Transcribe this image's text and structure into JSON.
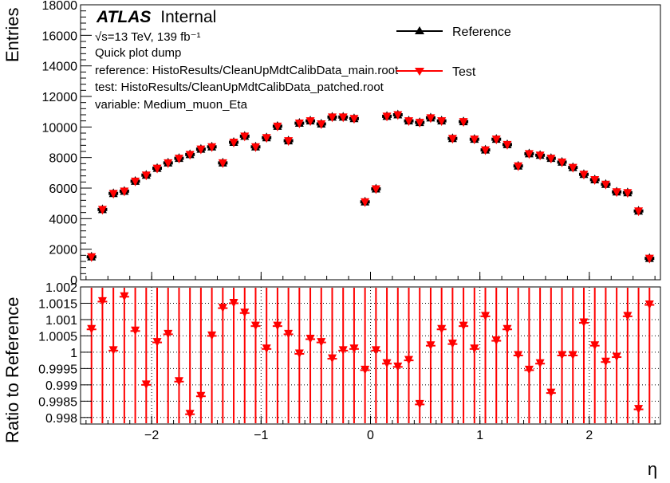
{
  "chart_data": {
    "type": "scatter",
    "top_panel": {
      "ylabel": "Entries",
      "ylim": [
        0,
        18000
      ],
      "yticks": [
        "0",
        "2000",
        "4000",
        "6000",
        "8000",
        "10000",
        "12000",
        "14000",
        "16000",
        "18000"
      ],
      "series": [
        {
          "name": "Reference",
          "marker": "triangle-up",
          "color": "#000000"
        },
        {
          "name": "Test",
          "marker": "triangle-down",
          "color": "#ff0000"
        }
      ],
      "x": [
        -2.55,
        -2.45,
        -2.35,
        -2.25,
        -2.15,
        -2.05,
        -1.95,
        -1.85,
        -1.75,
        -1.65,
        -1.55,
        -1.45,
        -1.35,
        -1.25,
        -1.15,
        -1.05,
        -0.95,
        -0.85,
        -0.75,
        -0.65,
        -0.55,
        -0.45,
        -0.35,
        -0.25,
        -0.15,
        -0.05,
        0.05,
        0.15,
        0.25,
        0.35,
        0.45,
        0.55,
        0.65,
        0.75,
        0.85,
        0.95,
        1.05,
        1.15,
        1.25,
        1.35,
        1.45,
        1.55,
        1.65,
        1.75,
        1.85,
        1.95,
        2.05,
        2.15,
        2.25,
        2.35,
        2.45,
        2.55
      ],
      "entries": [
        1500,
        4600,
        5650,
        5800,
        6450,
        6850,
        7300,
        7650,
        7950,
        8200,
        8550,
        8700,
        7650,
        9000,
        9400,
        8700,
        9300,
        10050,
        9100,
        10250,
        10400,
        10200,
        10650,
        10650,
        10550,
        5100,
        5950,
        10700,
        10800,
        10400,
        10300,
        10600,
        10400,
        9250,
        10350,
        9200,
        8500,
        9200,
        8850,
        7450,
        8250,
        8150,
        7950,
        7700,
        7350,
        6900,
        6550,
        6250,
        5750,
        5700,
        4500,
        1400
      ],
      "annotations": [
        "√s=13 TeV, 139 fb⁻¹",
        "Quick plot dump",
        "reference:  HistoResults/CleanUpMdtCalibData_main.root",
        "test: HistoResults/CleanUpMdtCalibData_patched.root",
        "variable: Medium_muon_Eta"
      ],
      "atlas_label": {
        "bold": "ATLAS",
        "normal": "Internal"
      },
      "legend_location": "top-right",
      "grid": false
    },
    "ratio_panel": {
      "ylabel": "Ratio to Reference",
      "ylim": [
        0.9978,
        1.002
      ],
      "yticks": [
        "0.998",
        "0.9985",
        "0.999",
        "0.9995",
        "1",
        "1.0005",
        "1.001",
        "1.0015",
        "1.002"
      ],
      "ratio": [
        1.0007,
        1.00155,
        1.00005,
        1.0017,
        1.00065,
        0.999,
        1.0003,
        1.00055,
        0.9991,
        0.9981,
        0.99865,
        1.0005,
        1.00135,
        1.0015,
        1.0012,
        1.0008,
        1.0001,
        1.0008,
        1.00055,
        0.99995,
        1.0004,
        1.0003,
        0.9998,
        1.00005,
        1.0001,
        0.99945,
        1.00005,
        0.99965,
        0.99955,
        0.99975,
        0.9984,
        1.0002,
        1.0007,
        1.00025,
        1.0008,
        1.0001,
        1.0011,
        1.00035,
        1.0007,
        0.9999,
        0.99945,
        0.99965,
        0.99875,
        0.9999,
        0.9999,
        1.0009,
        1.0002,
        0.9997,
        0.99985,
        1.0011,
        0.99825,
        1.00145
      ],
      "error_bars": "full-range",
      "grid": true
    },
    "xlabel": "η",
    "xlim": [
      -2.65,
      2.65
    ],
    "xticks": [
      "−2",
      "−1",
      "0",
      "1",
      "2"
    ]
  }
}
